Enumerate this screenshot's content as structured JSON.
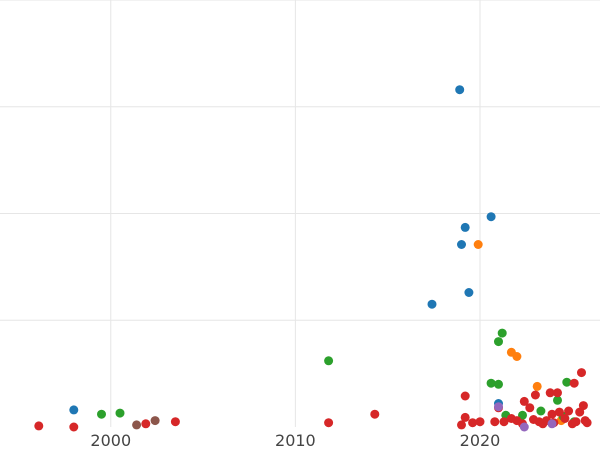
{
  "chart_data": {
    "type": "scatter",
    "title": "",
    "xlabel": "",
    "ylabel": "",
    "xlim": [
      1994,
      2026.5
    ],
    "ylim": [
      0,
      4
    ],
    "grid": true,
    "legend": "none",
    "x_ticks": [
      {
        "value": 2000,
        "label": "2000"
      },
      {
        "value": 2010,
        "label": "2010"
      },
      {
        "value": 2020,
        "label": "2020"
      }
    ],
    "y_grid_values": [
      1,
      2,
      3,
      4
    ],
    "colors": {
      "blue": "#1f77b4",
      "orange": "#ff7f0e",
      "green": "#2ca02c",
      "red": "#d62728",
      "purple": "#9467bd",
      "brown": "#8c564b"
    },
    "series": [
      {
        "color": "#1f77b4",
        "points": [
          {
            "x": 1998.0,
            "y": 0.16
          },
          {
            "x": 2018.9,
            "y": 3.16
          },
          {
            "x": 2020.6,
            "y": 1.97
          },
          {
            "x": 2019.2,
            "y": 1.87
          },
          {
            "x": 2019.0,
            "y": 1.71
          },
          {
            "x": 2019.4,
            "y": 1.26
          },
          {
            "x": 2017.4,
            "y": 1.15
          },
          {
            "x": 2021.0,
            "y": 0.22
          }
        ]
      },
      {
        "color": "#ff7f0e",
        "points": [
          {
            "x": 2019.9,
            "y": 1.71
          },
          {
            "x": 2021.7,
            "y": 0.7
          },
          {
            "x": 2022.0,
            "y": 0.66
          },
          {
            "x": 2023.1,
            "y": 0.38
          },
          {
            "x": 2024.4,
            "y": 0.06
          }
        ]
      },
      {
        "color": "#2ca02c",
        "points": [
          {
            "x": 1999.5,
            "y": 0.12
          },
          {
            "x": 2000.5,
            "y": 0.13
          },
          {
            "x": 2011.8,
            "y": 0.62
          },
          {
            "x": 2021.2,
            "y": 0.88
          },
          {
            "x": 2021.0,
            "y": 0.8
          },
          {
            "x": 2020.6,
            "y": 0.41
          },
          {
            "x": 2021.0,
            "y": 0.4
          },
          {
            "x": 2021.4,
            "y": 0.11
          },
          {
            "x": 2022.3,
            "y": 0.11
          },
          {
            "x": 2023.3,
            "y": 0.15
          },
          {
            "x": 2024.2,
            "y": 0.25
          },
          {
            "x": 2024.7,
            "y": 0.42
          },
          {
            "x": 2024.5,
            "y": 0.1
          },
          {
            "x": 2025.1,
            "y": 0.05
          }
        ]
      },
      {
        "color": "#d62728",
        "points": [
          {
            "x": 1996.1,
            "y": 0.01
          },
          {
            "x": 1998.0,
            "y": 0.0
          },
          {
            "x": 2001.9,
            "y": 0.03
          },
          {
            "x": 2003.5,
            "y": 0.05
          },
          {
            "x": 2011.8,
            "y": 0.04
          },
          {
            "x": 2014.3,
            "y": 0.12
          },
          {
            "x": 2019.0,
            "y": 0.02
          },
          {
            "x": 2019.2,
            "y": 0.29
          },
          {
            "x": 2019.2,
            "y": 0.09
          },
          {
            "x": 2019.6,
            "y": 0.04
          },
          {
            "x": 2020.0,
            "y": 0.05
          },
          {
            "x": 2020.8,
            "y": 0.05
          },
          {
            "x": 2021.0,
            "y": 0.18
          },
          {
            "x": 2021.3,
            "y": 0.05
          },
          {
            "x": 2021.7,
            "y": 0.08
          },
          {
            "x": 2022.0,
            "y": 0.06
          },
          {
            "x": 2022.3,
            "y": 0.03
          },
          {
            "x": 2022.4,
            "y": 0.24
          },
          {
            "x": 2022.7,
            "y": 0.18
          },
          {
            "x": 2022.9,
            "y": 0.07
          },
          {
            "x": 2023.0,
            "y": 0.3
          },
          {
            "x": 2023.2,
            "y": 0.05
          },
          {
            "x": 2023.4,
            "y": 0.03
          },
          {
            "x": 2023.6,
            "y": 0.06
          },
          {
            "x": 2023.8,
            "y": 0.32
          },
          {
            "x": 2023.9,
            "y": 0.12
          },
          {
            "x": 2024.0,
            "y": 0.04
          },
          {
            "x": 2024.2,
            "y": 0.32
          },
          {
            "x": 2024.3,
            "y": 0.14
          },
          {
            "x": 2024.6,
            "y": 0.08
          },
          {
            "x": 2024.8,
            "y": 0.15
          },
          {
            "x": 2025.0,
            "y": 0.03
          },
          {
            "x": 2025.1,
            "y": 0.41
          },
          {
            "x": 2025.2,
            "y": 0.05
          },
          {
            "x": 2025.4,
            "y": 0.14
          },
          {
            "x": 2025.6,
            "y": 0.2
          },
          {
            "x": 2025.5,
            "y": 0.51
          },
          {
            "x": 2025.7,
            "y": 0.06
          },
          {
            "x": 2025.8,
            "y": 0.04
          }
        ]
      },
      {
        "color": "#9467bd",
        "points": [
          {
            "x": 2021.0,
            "y": 0.19
          },
          {
            "x": 2022.4,
            "y": 0.0
          },
          {
            "x": 2023.9,
            "y": 0.03
          }
        ]
      },
      {
        "color": "#8c564b",
        "points": [
          {
            "x": 2001.4,
            "y": 0.02
          },
          {
            "x": 2002.4,
            "y": 0.06
          }
        ]
      }
    ]
  }
}
